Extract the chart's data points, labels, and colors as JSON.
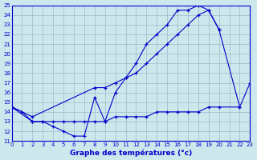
{
  "title": "Graphe des températures (°c)",
  "bg_color": "#cce8ec",
  "line_color": "#0000cc",
  "grid_color": "#99bbcc",
  "xlim": [
    0,
    23
  ],
  "ylim": [
    11,
    25
  ],
  "xticks": [
    0,
    1,
    2,
    3,
    4,
    5,
    6,
    7,
    8,
    9,
    10,
    11,
    12,
    13,
    14,
    15,
    16,
    17,
    18,
    19,
    20,
    21,
    22,
    23
  ],
  "yticks": [
    11,
    12,
    13,
    14,
    15,
    16,
    17,
    18,
    19,
    20,
    21,
    22,
    23,
    24,
    25
  ],
  "line1_x": [
    0,
    1,
    2,
    3,
    4,
    5,
    6,
    7,
    8,
    9,
    10,
    11,
    12,
    13,
    14,
    15,
    16,
    17,
    18,
    19,
    20
  ],
  "line1_y": [
    14.5,
    14.0,
    13.0,
    13.0,
    12.5,
    12.0,
    11.5,
    11.5,
    15.5,
    13.0,
    16.0,
    17.5,
    19.0,
    21.0,
    22.0,
    23.0,
    24.5,
    24.5,
    25.0,
    24.5,
    22.5
  ],
  "line2_x": [
    0,
    2,
    8,
    9,
    10,
    11,
    12,
    13,
    14,
    15,
    16,
    17,
    18,
    19,
    20,
    22,
    23
  ],
  "line2_y": [
    14.5,
    13.5,
    16.5,
    16.5,
    17.0,
    17.5,
    18.0,
    19.0,
    20.0,
    21.0,
    22.0,
    23.0,
    24.0,
    24.5,
    22.5,
    14.5,
    17.0
  ],
  "line3_x": [
    0,
    2,
    3,
    4,
    5,
    6,
    7,
    8,
    9,
    10,
    11,
    12,
    13,
    14,
    15,
    16,
    17,
    18,
    19,
    20,
    22
  ],
  "line3_y": [
    14.5,
    13.0,
    13.0,
    13.0,
    13.0,
    13.0,
    13.0,
    13.0,
    13.0,
    13.5,
    13.5,
    13.5,
    13.5,
    14.0,
    14.0,
    14.0,
    14.0,
    14.0,
    14.5,
    14.5,
    14.5
  ]
}
